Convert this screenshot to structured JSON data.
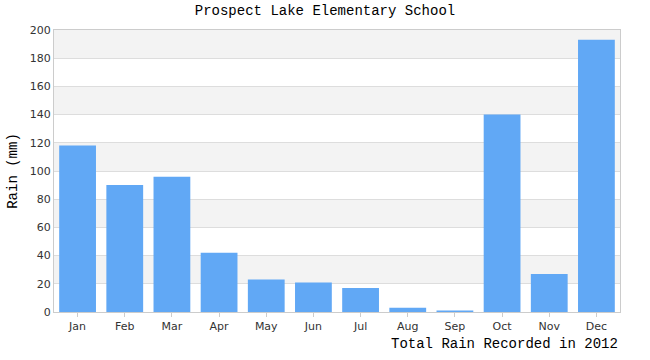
{
  "chart_data": {
    "type": "bar",
    "title": "Prospect Lake Elementary School",
    "xlabel": "Total Rain Recorded in 2012",
    "ylabel": "Rain (mm)",
    "categories": [
      "Jan",
      "Feb",
      "Mar",
      "Apr",
      "May",
      "Jun",
      "Jul",
      "Aug",
      "Sep",
      "Oct",
      "Nov",
      "Dec"
    ],
    "values": [
      118,
      90,
      96,
      42,
      23,
      21,
      17,
      3,
      1,
      140,
      27,
      193
    ],
    "color": "#61a8f5",
    "ylim": [
      0,
      200
    ],
    "yticks": [
      0,
      20,
      40,
      60,
      80,
      100,
      120,
      140,
      160,
      180,
      200
    ],
    "grid": true
  }
}
